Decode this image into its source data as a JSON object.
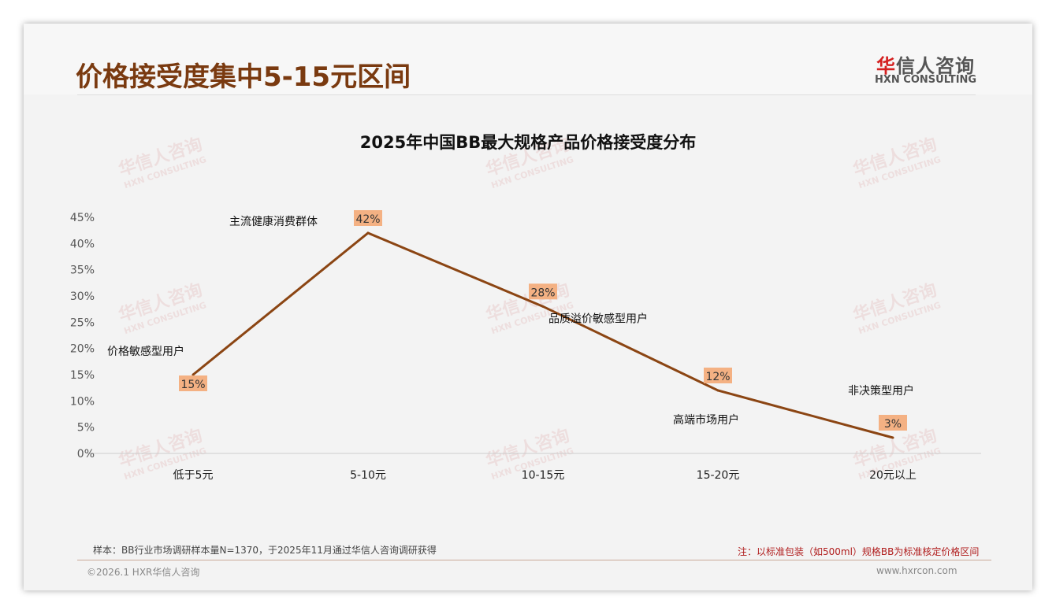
{
  "header": {
    "title": "价格接受度集中5-15元区间",
    "logo_red": "华",
    "logo_rest": "信人咨询",
    "logo_sub": "HXN CONSULTING"
  },
  "chart_data": {
    "type": "line",
    "title": "2025年中国BB最大规格产品价格接受度分布",
    "categories": [
      "低于5元",
      "5-10元",
      "10-15元",
      "15-20元",
      "20元以上"
    ],
    "values": [
      15,
      42,
      28,
      12,
      3
    ],
    "data_labels": [
      "15%",
      "42%",
      "28%",
      "12%",
      "3%"
    ],
    "annotations": [
      "价格敏感型用户",
      "主流健康消费群体",
      "品质溢价敏感型用户",
      "高端市场用户",
      "非决策型用户"
    ],
    "yticks": [
      "0%",
      "5%",
      "10%",
      "15%",
      "20%",
      "25%",
      "30%",
      "35%",
      "40%",
      "45%"
    ],
    "ylim": [
      0,
      45
    ],
    "xlabel": "",
    "ylabel": "",
    "line_color": "#8b4513",
    "label_bg": "#f4b183"
  },
  "footer": {
    "sample": "样本：BB行业市场调研样本量N=1370，于2025年11月通过华信人咨询调研获得",
    "note": "注：以标准包装（如500ml）规格BB为标准核定价格区间",
    "copyright": "©2026.1 HXR华信人咨询",
    "url": "www.hxrcon.com"
  }
}
